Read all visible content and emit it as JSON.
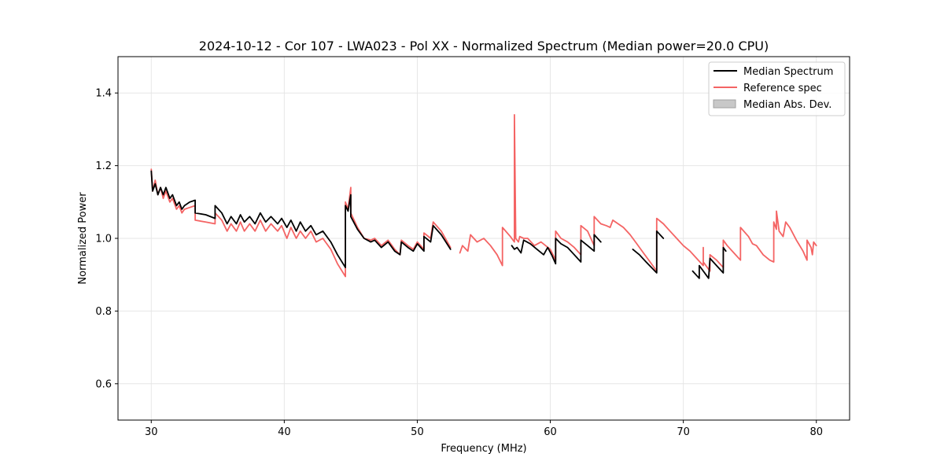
{
  "chart_data": {
    "type": "line",
    "title": "2024-10-12 - Cor 107 - LWA023 - Pol XX - Normalized Spectrum (Median power=20.0 CPU)",
    "xlabel": "Frequency (MHz)",
    "ylabel": "Normalized Power",
    "xlim": [
      27.5,
      82.5
    ],
    "ylim": [
      0.5,
      1.5
    ],
    "xticks": [
      30,
      40,
      50,
      60,
      70,
      80
    ],
    "yticks": [
      0.6,
      0.8,
      1.0,
      1.2,
      1.4
    ],
    "xtick_labels": [
      "30",
      "40",
      "50",
      "60",
      "70",
      "80"
    ],
    "ytick_labels": [
      "0.6",
      "0.8",
      "1.0",
      "1.2",
      "1.4"
    ],
    "grid": true,
    "legend_position": "top-right",
    "legend": [
      {
        "label": "Median Spectrum",
        "color": "#000000",
        "kind": "line"
      },
      {
        "label": "Reference spec",
        "color": "#f46464",
        "kind": "line"
      },
      {
        "label": "Median Abs. Dev.",
        "color": "#c8c8c8",
        "kind": "patch"
      }
    ],
    "series": [
      {
        "name": "Reference spec",
        "color": "#f46464",
        "segments": [
          [
            [
              30.0,
              1.19
            ],
            [
              30.1,
              1.13
            ],
            [
              30.3,
              1.16
            ],
            [
              30.5,
              1.12
            ],
            [
              30.7,
              1.14
            ],
            [
              30.9,
              1.11
            ],
            [
              31.1,
              1.13
            ],
            [
              31.4,
              1.1
            ],
            [
              31.6,
              1.11
            ],
            [
              31.9,
              1.08
            ],
            [
              32.1,
              1.09
            ],
            [
              32.3,
              1.07
            ],
            [
              32.5,
              1.08
            ],
            [
              32.9,
              1.085
            ],
            [
              33.3,
              1.09
            ],
            [
              33.3,
              1.05
            ],
            [
              34.1,
              1.045
            ],
            [
              34.8,
              1.04
            ],
            [
              34.8,
              1.07
            ],
            [
              35.3,
              1.05
            ],
            [
              35.7,
              1.02
            ],
            [
              36.0,
              1.04
            ],
            [
              36.4,
              1.02
            ],
            [
              36.7,
              1.045
            ],
            [
              37.0,
              1.02
            ],
            [
              37.4,
              1.04
            ],
            [
              37.8,
              1.02
            ],
            [
              38.2,
              1.05
            ],
            [
              38.6,
              1.02
            ],
            [
              39.0,
              1.04
            ],
            [
              39.5,
              1.02
            ],
            [
              39.8,
              1.035
            ],
            [
              40.2,
              1.0
            ],
            [
              40.5,
              1.03
            ],
            [
              40.9,
              1.0
            ],
            [
              41.2,
              1.02
            ],
            [
              41.6,
              1.0
            ],
            [
              42.0,
              1.02
            ],
            [
              42.4,
              0.99
            ],
            [
              42.9,
              1.0
            ],
            [
              43.5,
              0.97
            ],
            [
              44.0,
              0.93
            ],
            [
              44.6,
              0.895
            ],
            [
              44.6,
              1.1
            ],
            [
              44.8,
              1.08
            ],
            [
              45.0,
              1.14
            ],
            [
              45.0,
              1.07
            ],
            [
              45.5,
              1.03
            ],
            [
              46.0,
              1.0
            ],
            [
              46.5,
              0.995
            ],
            [
              46.8,
              1.0
            ],
            [
              47.3,
              0.98
            ],
            [
              47.8,
              0.995
            ],
            [
              48.3,
              0.97
            ],
            [
              48.7,
              0.955
            ],
            [
              48.8,
              0.995
            ],
            [
              49.3,
              0.98
            ],
            [
              49.7,
              0.97
            ],
            [
              50.0,
              0.99
            ],
            [
              50.5,
              0.97
            ],
            [
              50.5,
              1.015
            ],
            [
              51.0,
              1.0
            ],
            [
              51.2,
              1.045
            ],
            [
              51.8,
              1.02
            ],
            [
              52.5,
              0.975
            ]
          ],
          [
            [
              53.2,
              0.96
            ],
            [
              53.4,
              0.98
            ],
            [
              53.8,
              0.965
            ],
            [
              54.0,
              1.01
            ],
            [
              54.5,
              0.99
            ],
            [
              55.0,
              1.0
            ],
            [
              55.5,
              0.98
            ],
            [
              56.0,
              0.955
            ],
            [
              56.4,
              0.925
            ],
            [
              56.4,
              1.03
            ],
            [
              57.0,
              1.005
            ],
            [
              57.3,
              0.99
            ],
            [
              57.3,
              1.34
            ],
            [
              57.4,
              1.0
            ],
            [
              57.6,
              0.99
            ],
            [
              57.7,
              1.005
            ],
            [
              58.0,
              1.0
            ],
            [
              58.3,
              1.0
            ],
            [
              58.8,
              0.98
            ],
            [
              59.3,
              0.99
            ],
            [
              60.0,
              0.97
            ],
            [
              60.4,
              0.94
            ],
            [
              60.4,
              1.02
            ],
            [
              60.8,
              1.0
            ],
            [
              61.3,
              0.99
            ],
            [
              61.8,
              0.975
            ],
            [
              62.3,
              0.955
            ],
            [
              62.3,
              1.035
            ],
            [
              62.8,
              1.02
            ],
            [
              63.3,
              0.98
            ],
            [
              63.3,
              1.06
            ],
            [
              63.8,
              1.04
            ],
            [
              64.2,
              1.035
            ],
            [
              64.5,
              1.03
            ],
            [
              64.7,
              1.05
            ],
            [
              65.5,
              1.03
            ],
            [
              66.0,
              1.01
            ],
            [
              66.5,
              0.985
            ],
            [
              67.0,
              0.96
            ],
            [
              67.5,
              0.935
            ],
            [
              68.0,
              0.91
            ],
            [
              68.0,
              1.055
            ],
            [
              68.5,
              1.04
            ],
            [
              69.0,
              1.02
            ],
            [
              69.5,
              1.0
            ],
            [
              70.0,
              0.98
            ],
            [
              70.5,
              0.965
            ],
            [
              71.0,
              0.945
            ],
            [
              71.5,
              0.925
            ],
            [
              71.5,
              0.975
            ],
            [
              71.5,
              0.935
            ],
            [
              72.0,
              0.91
            ],
            [
              72.0,
              0.955
            ],
            [
              72.5,
              0.94
            ],
            [
              73.0,
              0.92
            ],
            [
              73.0,
              0.995
            ],
            [
              73.3,
              0.98
            ],
            [
              73.8,
              0.96
            ],
            [
              74.3,
              0.94
            ],
            [
              74.3,
              1.03
            ],
            [
              74.9,
              1.005
            ],
            [
              75.2,
              0.985
            ],
            [
              75.5,
              0.98
            ],
            [
              76.0,
              0.955
            ],
            [
              76.5,
              0.94
            ],
            [
              76.8,
              0.935
            ],
            [
              76.8,
              1.045
            ],
            [
              77.0,
              1.025
            ],
            [
              77.0,
              1.075
            ],
            [
              77.2,
              1.02
            ],
            [
              77.5,
              1.005
            ],
            [
              77.7,
              1.045
            ],
            [
              78.0,
              1.03
            ],
            [
              78.5,
              0.995
            ],
            [
              79.0,
              0.965
            ],
            [
              79.3,
              0.94
            ],
            [
              79.3,
              0.995
            ],
            [
              79.6,
              0.975
            ],
            [
              79.7,
              0.955
            ],
            [
              79.8,
              0.99
            ],
            [
              80.0,
              0.98
            ]
          ]
        ]
      },
      {
        "name": "Median Spectrum",
        "color": "#000000",
        "segments": [
          [
            [
              30.0,
              1.185
            ],
            [
              30.1,
              1.13
            ],
            [
              30.3,
              1.15
            ],
            [
              30.5,
              1.12
            ],
            [
              30.7,
              1.14
            ],
            [
              30.9,
              1.12
            ],
            [
              31.1,
              1.14
            ],
            [
              31.4,
              1.11
            ],
            [
              31.6,
              1.12
            ],
            [
              31.9,
              1.09
            ],
            [
              32.1,
              1.1
            ],
            [
              32.3,
              1.08
            ],
            [
              32.5,
              1.09
            ],
            [
              32.9,
              1.1
            ],
            [
              33.3,
              1.105
            ],
            [
              33.3,
              1.07
            ],
            [
              34.1,
              1.065
            ],
            [
              34.8,
              1.055
            ],
            [
              34.8,
              1.09
            ],
            [
              35.3,
              1.07
            ],
            [
              35.7,
              1.04
            ],
            [
              36.0,
              1.06
            ],
            [
              36.4,
              1.04
            ],
            [
              36.7,
              1.065
            ],
            [
              37.0,
              1.045
            ],
            [
              37.4,
              1.06
            ],
            [
              37.8,
              1.04
            ],
            [
              38.2,
              1.07
            ],
            [
              38.6,
              1.045
            ],
            [
              39.0,
              1.06
            ],
            [
              39.5,
              1.04
            ],
            [
              39.8,
              1.055
            ],
            [
              40.2,
              1.03
            ],
            [
              40.5,
              1.05
            ],
            [
              40.9,
              1.02
            ],
            [
              41.2,
              1.045
            ],
            [
              41.6,
              1.02
            ],
            [
              42.0,
              1.035
            ],
            [
              42.4,
              1.01
            ],
            [
              42.9,
              1.02
            ],
            [
              43.5,
              0.99
            ],
            [
              44.0,
              0.955
            ],
            [
              44.6,
              0.92
            ],
            [
              44.6,
              1.09
            ],
            [
              44.8,
              1.075
            ],
            [
              45.0,
              1.12
            ],
            [
              45.0,
              1.06
            ],
            [
              45.5,
              1.025
            ],
            [
              46.0,
              1.0
            ],
            [
              46.5,
              0.99
            ],
            [
              46.8,
              0.995
            ],
            [
              47.3,
              0.975
            ],
            [
              47.8,
              0.99
            ],
            [
              48.3,
              0.965
            ],
            [
              48.7,
              0.955
            ],
            [
              48.8,
              0.99
            ],
            [
              49.3,
              0.975
            ],
            [
              49.7,
              0.965
            ],
            [
              50.0,
              0.985
            ],
            [
              50.5,
              0.965
            ],
            [
              50.5,
              1.005
            ],
            [
              51.0,
              0.99
            ],
            [
              51.2,
              1.035
            ],
            [
              51.8,
              1.01
            ],
            [
              52.5,
              0.97
            ]
          ],
          [
            [
              57.1,
              0.98
            ],
            [
              57.3,
              0.97
            ],
            [
              57.5,
              0.975
            ],
            [
              57.8,
              0.96
            ],
            [
              58.0,
              0.995
            ],
            [
              58.5,
              0.985
            ],
            [
              59.0,
              0.97
            ],
            [
              59.5,
              0.955
            ],
            [
              59.8,
              0.975
            ],
            [
              60.1,
              0.955
            ],
            [
              60.4,
              0.93
            ],
            [
              60.4,
              1.0
            ],
            [
              60.8,
              0.985
            ],
            [
              61.3,
              0.975
            ],
            [
              61.8,
              0.955
            ],
            [
              62.3,
              0.935
            ],
            [
              62.3,
              0.995
            ],
            [
              62.8,
              0.98
            ],
            [
              63.3,
              0.965
            ],
            [
              63.3,
              1.01
            ],
            [
              63.8,
              0.99
            ]
          ],
          [
            [
              66.2,
              0.97
            ],
            [
              66.7,
              0.955
            ],
            [
              67.2,
              0.935
            ],
            [
              67.6,
              0.92
            ],
            [
              68.0,
              0.905
            ],
            [
              68.0,
              1.02
            ],
            [
              68.5,
              1.0
            ]
          ],
          [
            [
              70.7,
              0.91
            ],
            [
              71.2,
              0.89
            ],
            [
              71.2,
              0.925
            ],
            [
              71.7,
              0.9
            ],
            [
              71.9,
              0.89
            ],
            [
              72.0,
              0.945
            ],
            [
              72.5,
              0.925
            ],
            [
              73.0,
              0.905
            ],
            [
              73.0,
              0.975
            ],
            [
              73.2,
              0.965
            ]
          ]
        ]
      }
    ]
  }
}
